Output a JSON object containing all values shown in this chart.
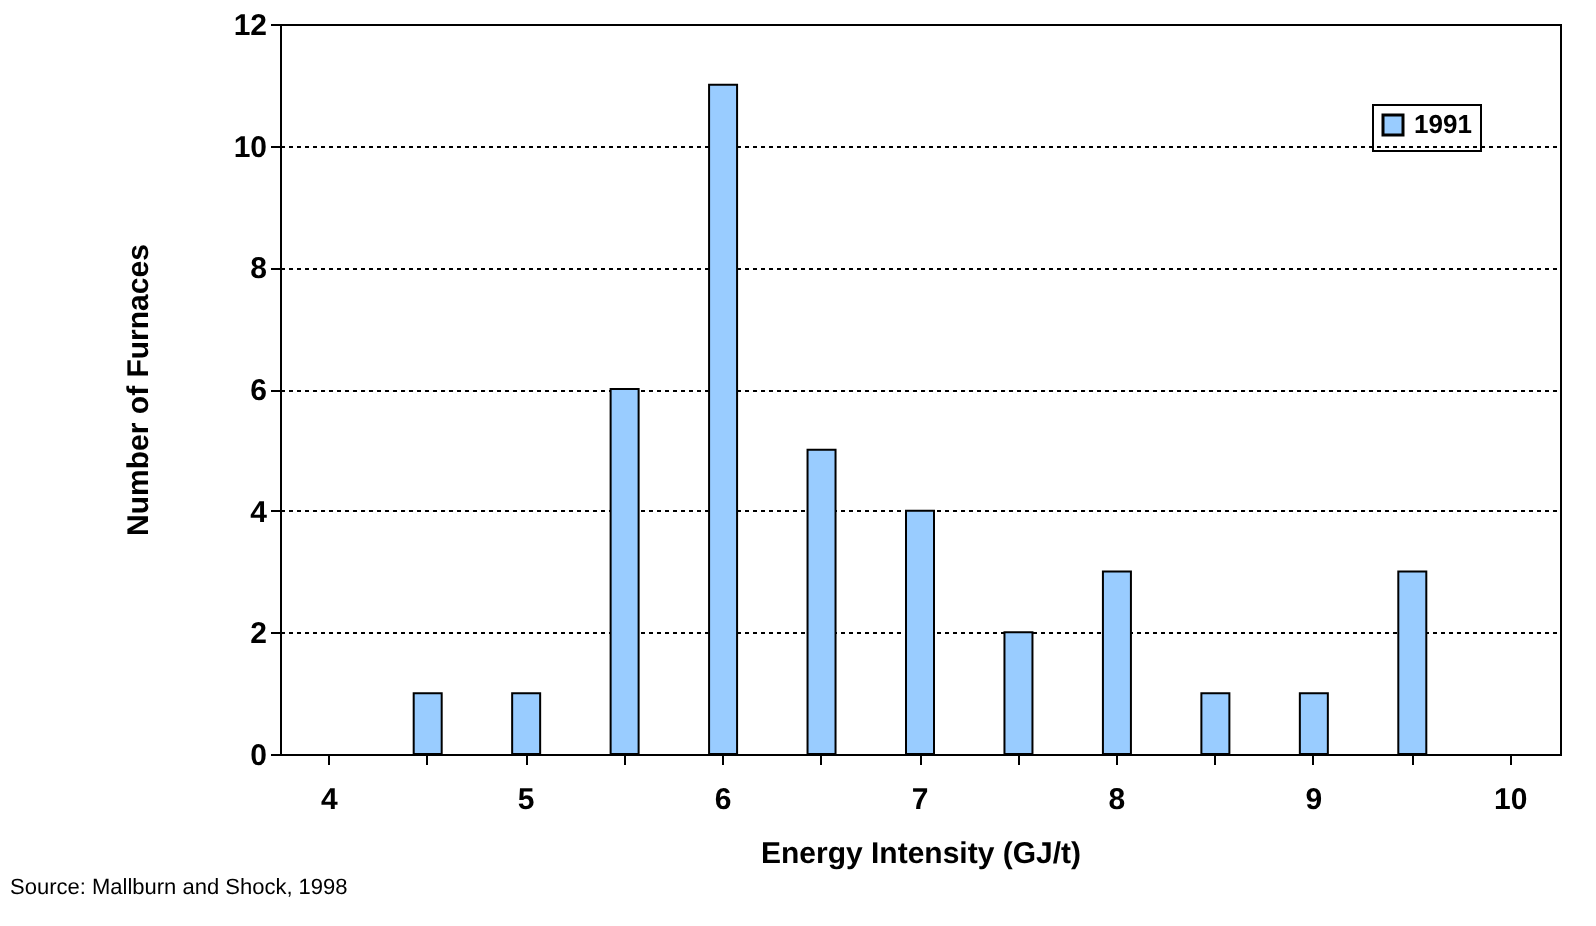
{
  "chart_data": {
    "type": "bar",
    "xlabel": "Energy Intensity (GJ/t)",
    "ylabel": "Number of Furnaces",
    "categories": [
      "4",
      null,
      "5",
      null,
      "6",
      null,
      "7",
      null,
      "8",
      null,
      "9",
      null,
      "10"
    ],
    "series": [
      {
        "name": "1991",
        "color": "#99ccff",
        "values": [
          0,
          1,
          1,
          6,
          11,
          5,
          4,
          2,
          3,
          1,
          1,
          3,
          0
        ]
      }
    ],
    "ylim": [
      0,
      12
    ],
    "yticks": [
      0,
      2,
      4,
      6,
      8,
      10,
      12
    ],
    "grid": "y",
    "legend": "top right",
    "annotations": [
      "Source: Mallburn and Shock, 1998"
    ]
  }
}
